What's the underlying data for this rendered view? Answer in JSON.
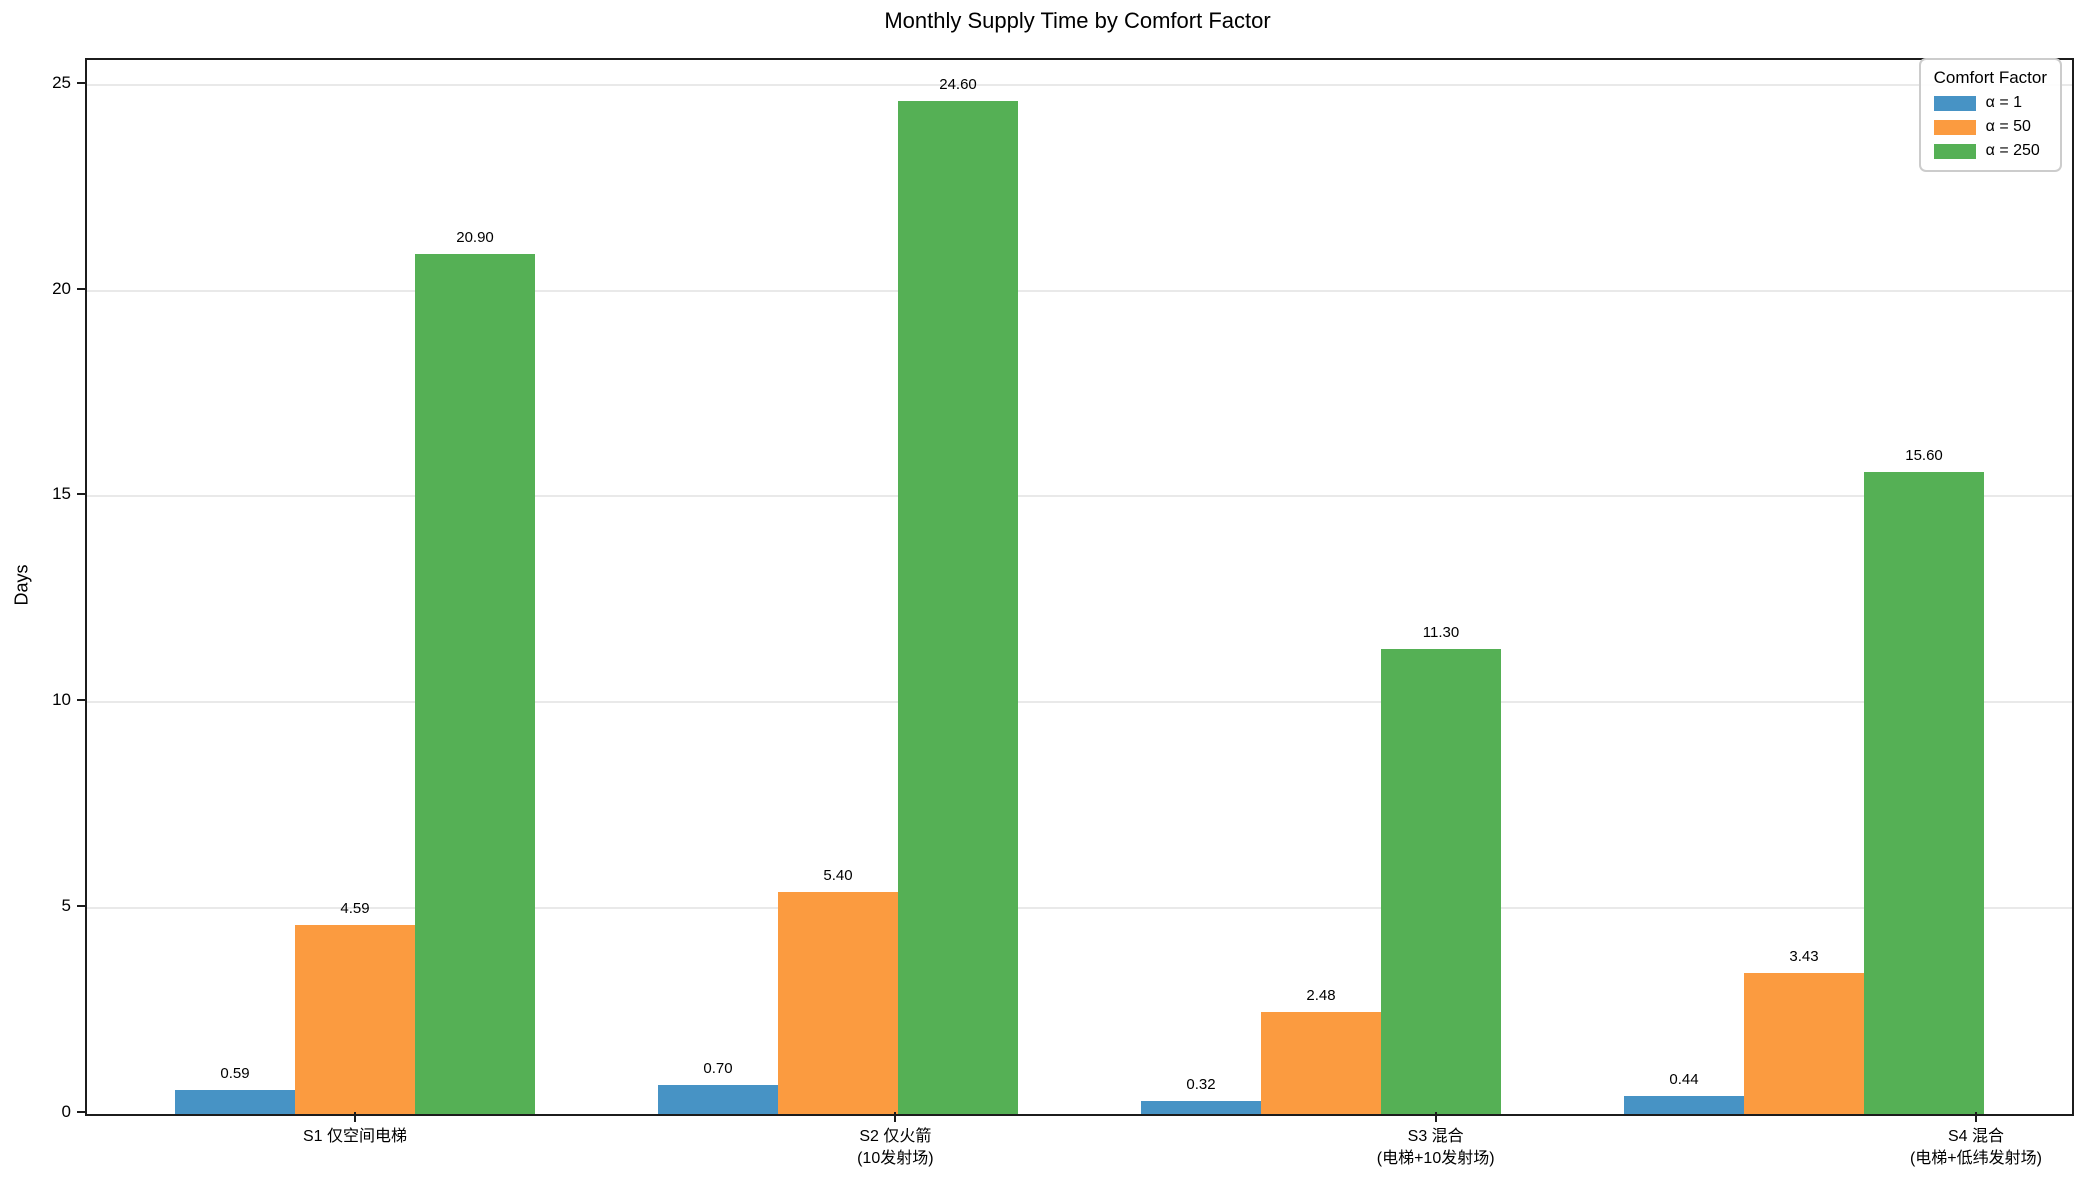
{
  "chart_data": {
    "type": "bar",
    "title": "Monthly Supply Time by Comfort Factor",
    "xlabel": "",
    "ylabel": "Days",
    "ylim": [
      0,
      25.6
    ],
    "yticks": [
      0,
      5,
      10,
      15,
      20,
      25
    ],
    "grid": true,
    "grid_color": "#e9e9e9",
    "axis_color": "#1c1c1c",
    "background_color": "#ffffff",
    "value_label_decimals": 2,
    "categories": [
      [
        "S1 仅空间电梯"
      ],
      [
        "S2 仅火箭",
        "(10发射场)"
      ],
      [
        "S3 混合",
        "(电梯+10发射场)"
      ],
      [
        "S4 混合",
        "(电梯+低纬发射场)"
      ]
    ],
    "series": [
      {
        "name": "α = 1",
        "color": "#4793c5",
        "values": [
          0.59,
          0.7,
          0.32,
          0.44
        ]
      },
      {
        "name": "α = 50",
        "color": "#fb9b40",
        "values": [
          4.59,
          5.4,
          2.48,
          3.43
        ]
      },
      {
        "name": "α = 250",
        "color": "#55b055",
        "values": [
          20.9,
          24.6,
          11.3,
          15.6
        ]
      }
    ],
    "legend": {
      "title": "Comfort Factor",
      "position": "upper right"
    }
  }
}
